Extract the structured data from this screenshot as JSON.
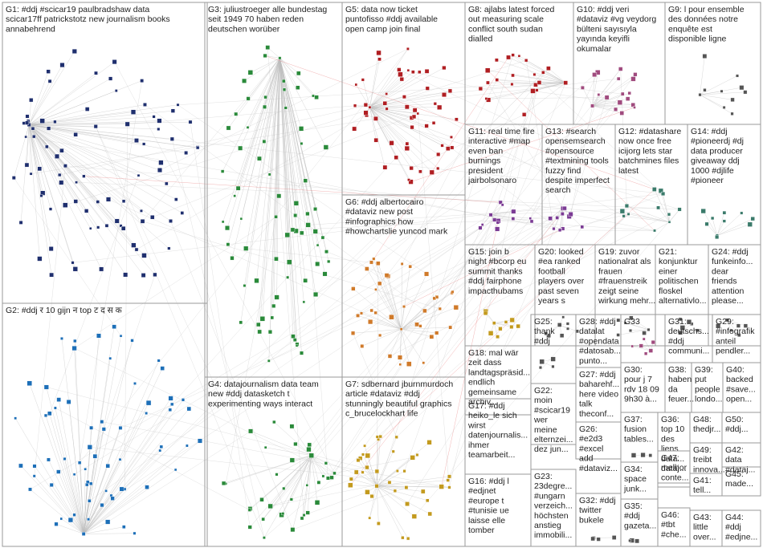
{
  "colors": {
    "edge": "#bdbdbd",
    "highlight_edge": "#e25a5a",
    "box_border": "#9a9a9a",
    "node_palette": [
      "#1f2f6e",
      "#1d6fb8",
      "#2a8a3a",
      "#b01e22",
      "#c39a1e",
      "#7b3b94",
      "#3b7b6b",
      "#a04b7e",
      "#555555",
      "#d07a2a"
    ]
  },
  "groups": [
    {
      "id": "G1",
      "label_lines": [
        "G1: #ddj #scicar19 paulbradshaw data",
        "scicar17ff patrickstotz new journalism books",
        "annabehrend"
      ],
      "color_index": 0
    },
    {
      "id": "G2",
      "label_lines": [
        "G2: #ddj र 10 gijn न top ट द स क"
      ],
      "color_index": 1
    },
    {
      "id": "G3",
      "label_lines": [
        "G3: juliustroeger alle bundestag",
        "seit 1949 70 haben reden",
        "deutschen worüber"
      ],
      "color_index": 2
    },
    {
      "id": "G4",
      "label_lines": [
        "G4: datajournalism data team",
        "new #ddj datasketch t",
        "experimenting ways interact"
      ],
      "color_index": 2
    },
    {
      "id": "G5",
      "label_lines": [
        "G5: data now ticket",
        "puntofisso #ddj available",
        "open camp join final"
      ],
      "color_index": 3
    },
    {
      "id": "G6",
      "label_lines": [
        "G6: #ddj albertocairo",
        "#dataviz new post",
        "#infographics how",
        "#howchartslie yuncod mark"
      ],
      "color_index": 9
    },
    {
      "id": "G7",
      "label_lines": [
        "G7: sdbernard jburnmurdoch",
        "article #dataviz #ddj",
        "stunningly beautiful graphics",
        "c_brucelockhart life"
      ],
      "color_index": 4
    },
    {
      "id": "G8",
      "label_lines": [
        "G8: ajlabs latest forced",
        "out measuring scale",
        "conflict south sudan",
        "dialled"
      ],
      "color_index": 3
    },
    {
      "id": "G10",
      "label_lines": [
        "G10: #ddj veri",
        "#dataviz #vg veydorg",
        "bülteni sayısıyla",
        "yayında keyifli",
        "okumalar"
      ],
      "color_index": 7
    },
    {
      "id": "G9",
      "label_lines": [
        "G9: l pour ensemble",
        "des données notre",
        "enquête est",
        "disponible ligne"
      ],
      "color_index": 8
    },
    {
      "id": "G11",
      "label_lines": [
        "G11: real time fire",
        "interactive #map",
        "even ban",
        "burnings",
        "president",
        "jairbolsonaro"
      ],
      "color_index": 5
    },
    {
      "id": "G13",
      "label_lines": [
        "G13: #search",
        "opensemsearch",
        "#opensource",
        "#textmining tools",
        "fuzzy find",
        "despite imperfect",
        "search"
      ],
      "color_index": 5
    },
    {
      "id": "G12",
      "label_lines": [
        "G12: #datashare",
        "now once free",
        "icijorg lets star",
        "batchmines files",
        "latest"
      ],
      "color_index": 6
    },
    {
      "id": "G14",
      "label_lines": [
        "G14: #ddj",
        "#pioneerdj #dj",
        "data producer",
        "giveaway ddj",
        "1000 #djlife",
        "#pioneer"
      ],
      "color_index": 6
    },
    {
      "id": "G15",
      "label_lines": [
        "G15: join b",
        "night #bcorp eu",
        "summit thanks",
        "#ddj fairphone",
        "impacthubams"
      ],
      "color_index": 4
    },
    {
      "id": "G20",
      "label_lines": [
        "G20: looked",
        "#ea ranked",
        "football",
        "players over",
        "past seven",
        "years s"
      ],
      "color_index": 8
    },
    {
      "id": "G19",
      "label_lines": [
        "G19: zuvor",
        "nationalrat als",
        "frauen",
        "#frauenstreik",
        "zeigt seine",
        "wirkung mehr..."
      ],
      "color_index": 8
    },
    {
      "id": "G21",
      "label_lines": [
        "G21:",
        "konjunktur",
        "einer",
        "politischen",
        "floskel",
        "alternativlo..."
      ],
      "color_index": 8
    },
    {
      "id": "G24",
      "label_lines": [
        "G24: #ddj",
        "funkeinfo...",
        "dear",
        "friends",
        "attention",
        "please..."
      ],
      "color_index": 8
    },
    {
      "id": "G18",
      "label_lines": [
        "G18: mal wär",
        "zeit dass",
        "landtagspräsid...",
        "endlich",
        "gemeinsame",
        "archiv..."
      ],
      "color_index": 8
    },
    {
      "id": "G25",
      "label_lines": [
        "G25:",
        "thank",
        "#ddj"
      ],
      "color_index": 8
    },
    {
      "id": "G28",
      "label_lines": [
        "G28: #ddj",
        "datalat",
        "#opendata",
        "#datosab...",
        "punto..."
      ],
      "color_index": 8
    },
    {
      "id": "G33",
      "label_lines": [
        "G33"
      ],
      "color_index": 7
    },
    {
      "id": "G31",
      "label_lines": [
        "G31:",
        "deutschs...",
        "#ddj",
        "communi..."
      ],
      "color_index": 8
    },
    {
      "id": "G29",
      "label_lines": [
        "G29:",
        "#infografik",
        "anteil",
        "pendler..."
      ],
      "color_index": 8
    },
    {
      "id": "G27",
      "label_lines": [
        "G27: #ddj",
        "baharehf...",
        "here video",
        "talk",
        "theconf..."
      ],
      "color_index": 8
    },
    {
      "id": "G30",
      "label_lines": [
        "G30:",
        "pour j 7",
        "rdv 18 09",
        "9h30 à..."
      ],
      "color_index": 8
    },
    {
      "id": "G38",
      "label_lines": [
        "G38:",
        "haben",
        "da",
        "feuer..."
      ],
      "color_index": 8
    },
    {
      "id": "G39",
      "label_lines": [
        "G39:",
        "put",
        "people",
        "londo..."
      ],
      "color_index": 8
    },
    {
      "id": "G40",
      "label_lines": [
        "G40:",
        "backed",
        "#save...",
        "open..."
      ],
      "color_index": 8
    },
    {
      "id": "G17",
      "label_lines": [
        "G17: #ddj",
        "heiko_le sich",
        "wirst",
        "datenjournalis...",
        "ihmer",
        "teamarbeit..."
      ],
      "color_index": 8
    },
    {
      "id": "G22",
      "label_lines": [
        "G22:",
        "moin",
        "#scicar19",
        "wer",
        "meine",
        "elternzei...",
        "dez jun..."
      ],
      "color_index": 8
    },
    {
      "id": "G26",
      "label_lines": [
        "G26:",
        "#e2d3",
        "#excel",
        "add",
        "#dataviz..."
      ],
      "color_index": 8
    },
    {
      "id": "G37",
      "label_lines": [
        "G37:",
        "fusion",
        "tables..."
      ],
      "color_index": 8
    },
    {
      "id": "G36",
      "label_lines": [
        "G36:",
        "top 10",
        "des",
        "liens",
        "data...",
        "dataj..."
      ],
      "color_index": 8
    },
    {
      "id": "G48",
      "label_lines": [
        "G48:",
        "thedjr..."
      ],
      "color_index": 8
    },
    {
      "id": "G50",
      "label_lines": [
        "G50:",
        "#ddj..."
      ],
      "color_index": 8
    },
    {
      "id": "G49",
      "label_lines": [
        "G49:",
        "treibt",
        "innova..."
      ],
      "color_index": 8
    },
    {
      "id": "G42",
      "label_lines": [
        "G42:",
        "data",
        "#dataj..."
      ],
      "color_index": 8
    },
    {
      "id": "G34",
      "label_lines": [
        "G34:",
        "space",
        "junk..."
      ],
      "color_index": 8
    },
    {
      "id": "G47",
      "label_lines": [
        "G47:",
        "melhor",
        "conte..."
      ],
      "color_index": 8
    },
    {
      "id": "G41",
      "label_lines": [
        "G41:",
        "tell..."
      ],
      "color_index": 8
    },
    {
      "id": "G45",
      "label_lines": [
        "G45:",
        "made..."
      ],
      "color_index": 8
    },
    {
      "id": "G16",
      "label_lines": [
        "G16: #ddj l",
        "#edjnet",
        "#europe t",
        "#tunisie ue",
        "laisse elle",
        "tomber"
      ],
      "color_index": 8
    },
    {
      "id": "G23",
      "label_lines": [
        "G23:",
        "23degre...",
        "#ungarn",
        "verzeich...",
        "höchsten",
        "anstieg",
        "immobili..."
      ],
      "color_index": 8
    },
    {
      "id": "G32",
      "label_lines": [
        "G32: #ddj",
        "twitter",
        "bukele"
      ],
      "color_index": 8
    },
    {
      "id": "G35",
      "label_lines": [
        "G35:",
        "#ddj",
        "gazeta..."
      ],
      "color_index": 8
    },
    {
      "id": "G46",
      "label_lines": [
        "G46:",
        "#tbt",
        "#che..."
      ],
      "color_index": 8
    },
    {
      "id": "G43",
      "label_lines": [
        "G43:",
        "little",
        "over..."
      ],
      "color_index": 8
    },
    {
      "id": "G44",
      "label_lines": [
        "G44:",
        "#ddj",
        "#edjne..."
      ],
      "color_index": 8
    }
  ]
}
